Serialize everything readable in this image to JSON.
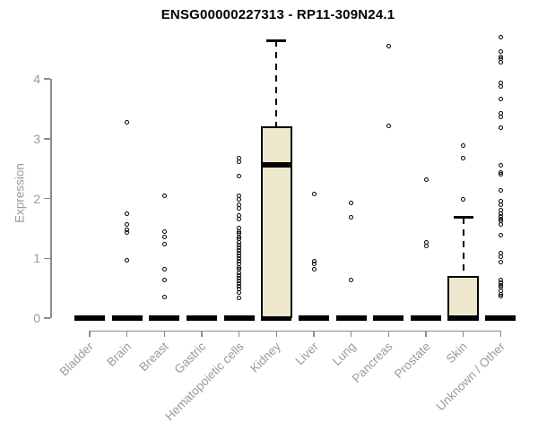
{
  "chart_data": {
    "type": "boxplot",
    "title": "ENSG00000227313 - RP11-309N24.1",
    "ylabel": "Expression",
    "xlabel": "",
    "ylim": [
      0,
      4.75
    ],
    "yticks": [
      0,
      1,
      2,
      3,
      4
    ],
    "grid": false,
    "legend": "none",
    "categories": [
      "Bladder",
      "Brain",
      "Breast",
      "Gastric",
      "Hematopoietic cells",
      "Kidney",
      "Liver",
      "Lung",
      "Pancreas",
      "Prostate",
      "Skin",
      "Unknown / Other"
    ],
    "series": [
      {
        "name": "Bladder",
        "q1": 0,
        "median": 0,
        "q3": 0,
        "whisker_low": 0,
        "whisker_high": 0,
        "outliers": []
      },
      {
        "name": "Brain",
        "q1": 0,
        "median": 0,
        "q3": 0,
        "whisker_low": 0,
        "whisker_high": 0,
        "outliers": [
          3.27,
          1.75,
          1.57,
          1.47,
          1.43,
          0.97
        ]
      },
      {
        "name": "Breast",
        "q1": 0,
        "median": 0,
        "q3": 0,
        "whisker_low": 0,
        "whisker_high": 0,
        "outliers": [
          2.05,
          1.45,
          1.35,
          1.23,
          0.82,
          0.63,
          0.35
        ]
      },
      {
        "name": "Gastric",
        "q1": 0,
        "median": 0,
        "q3": 0,
        "whisker_low": 0,
        "whisker_high": 0,
        "outliers": []
      },
      {
        "name": "Hematopoietic cells",
        "q1": 0,
        "median": 0,
        "q3": 0,
        "whisker_low": 0,
        "whisker_high": 0,
        "outliers": [
          2.68,
          2.61,
          2.38,
          2.05,
          1.98,
          1.9,
          1.83,
          1.72,
          1.65,
          1.5,
          1.45,
          1.41,
          1.36,
          1.32,
          1.27,
          1.22,
          1.18,
          1.13,
          1.08,
          1.04,
          0.99,
          0.95,
          0.9,
          0.85,
          0.81,
          0.76,
          0.71,
          0.67,
          0.62,
          0.57,
          0.53,
          0.49,
          0.42,
          0.33
        ]
      },
      {
        "name": "Kidney",
        "q1": 0,
        "median": 2.56,
        "q3": 3.2,
        "whisker_low": 0,
        "whisker_high": 4.64,
        "outliers": []
      },
      {
        "name": "Liver",
        "q1": 0,
        "median": 0,
        "q3": 0,
        "whisker_low": 0,
        "whisker_high": 0,
        "outliers": [
          2.07,
          0.95,
          0.91,
          0.82
        ]
      },
      {
        "name": "Lung",
        "q1": 0,
        "median": 0,
        "q3": 0,
        "whisker_low": 0,
        "whisker_high": 0,
        "outliers": [
          1.93,
          1.69,
          0.64
        ]
      },
      {
        "name": "Pancreas",
        "q1": 0,
        "median": 0,
        "q3": 0,
        "whisker_low": 0,
        "whisker_high": 0,
        "outliers": [
          4.54,
          3.22
        ]
      },
      {
        "name": "Prostate",
        "q1": 0,
        "median": 0,
        "q3": 0,
        "whisker_low": 0,
        "whisker_high": 0,
        "outliers": [
          2.32,
          1.26,
          1.21
        ]
      },
      {
        "name": "Skin",
        "q1": 0,
        "median": 0,
        "q3": 0.7,
        "whisker_low": 0,
        "whisker_high": 1.68,
        "outliers": [
          2.89,
          2.68,
          1.98
        ]
      },
      {
        "name": "Unknown / Other",
        "q1": 0,
        "median": 0,
        "q3": 0,
        "whisker_low": 0,
        "whisker_high": 0,
        "outliers": [
          4.69,
          4.46,
          4.37,
          4.33,
          4.28,
          3.94,
          3.87,
          3.67,
          3.42,
          3.37,
          3.18,
          2.55,
          2.44,
          2.41,
          2.14,
          1.95,
          1.89,
          1.8,
          1.75,
          1.7,
          1.66,
          1.62,
          1.57,
          1.38,
          1.08,
          1.02,
          0.94,
          0.64,
          0.59,
          0.55,
          0.51,
          0.46,
          0.4,
          0.36
        ]
      }
    ],
    "colors": {
      "box_fill": "#EDE8CE",
      "box_border": "#000000",
      "median": "#000000",
      "whisker": "#000000",
      "outlier": "#000000",
      "axis": "#8C8C8C",
      "tick_label": "#9A9A9A",
      "title": "#000000",
      "background": "#FFFFFF"
    }
  }
}
